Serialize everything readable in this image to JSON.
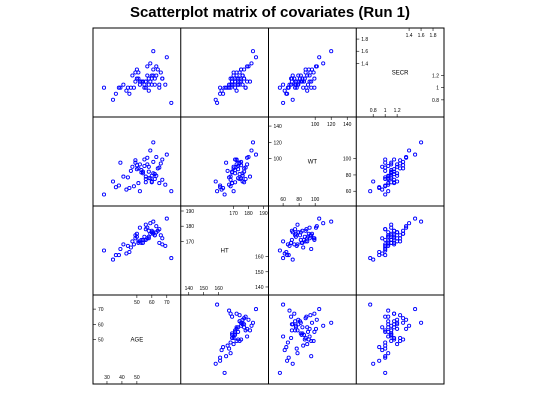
{
  "chart_data": {
    "type": "scatter",
    "title": "Scatterplot matrix of covariates (Run 1)",
    "variables": [
      "AGE",
      "HT",
      "WT",
      "SECR"
    ],
    "layout": "lower-left-to-upper-right diagonal",
    "point_color": "#0000ff",
    "ranges": {
      "AGE": [
        24,
        76
      ],
      "HT": [
        138,
        190
      ],
      "WT": [
        48,
        145
      ],
      "SECR": [
        0.6,
        1.9
      ]
    },
    "ticks": {
      "AGE": {
        "top": [
          50,
          60,
          70
        ],
        "left": [
          70,
          60,
          50
        ],
        "bottom": [
          30,
          40,
          50
        ]
      },
      "HT": {
        "top": [
          170,
          180,
          190
        ],
        "left": [
          190,
          180,
          170
        ],
        "right": [
          160,
          150,
          140
        ],
        "bottom": [
          140,
          150,
          160
        ]
      },
      "WT": {
        "top": [
          100,
          120,
          140
        ],
        "left": [
          140,
          120,
          100
        ],
        "right": [
          100,
          80,
          60
        ],
        "bottom": [
          60,
          80,
          100
        ]
      },
      "SECR": {
        "top": [
          1.4,
          1.6,
          1.8
        ],
        "left": [
          1.8,
          1.6,
          1.4
        ],
        "right": [
          1.2,
          1.0,
          0.8
        ],
        "bottom": [
          0.8,
          1.0,
          1.2
        ]
      }
    },
    "points": {
      "AGE": [
        41,
        49,
        51,
        58,
        61,
        36,
        55,
        64,
        59,
        52,
        46,
        63,
        67,
        57,
        38,
        54,
        60,
        49,
        56,
        65,
        43,
        59,
        62,
        52,
        69,
        47,
        56,
        50,
        61,
        34,
        70,
        58,
        53,
        66,
        60,
        45,
        53,
        55,
        63,
        57,
        48,
        67,
        51,
        62,
        28,
        54,
        60,
        39,
        58,
        65,
        50,
        56,
        73,
        61,
        44
      ],
      "HT": [
        168,
        174,
        169,
        172,
        176,
        161,
        171,
        177,
        175,
        170,
        166,
        180,
        168,
        172,
        161,
        169,
        176,
        172,
        171,
        178,
        162,
        182,
        174,
        179,
        167,
        170,
        178,
        173,
        175,
        158,
        185,
        173,
        169,
        174,
        177,
        163,
        171,
        173,
        176,
        179,
        168,
        172,
        170,
        174,
        164,
        171,
        176,
        165,
        177,
        169,
        175,
        181,
        159,
        183,
        167
      ],
      "WT": [
        78,
        95,
        70,
        90,
        82,
        65,
        99,
        88,
        76,
        60,
        85,
        102,
        74,
        93,
        67,
        84,
        79,
        98,
        71,
        89,
        62,
        110,
        81,
        93,
        68,
        90,
        75,
        87,
        96,
        72,
        105,
        76,
        83,
        94,
        71,
        64,
        86,
        91,
        79,
        101,
        66,
        99,
        88,
        75,
        56,
        82,
        72,
        95,
        84,
        70,
        92,
        78,
        60,
        120,
        77
      ],
      "SECR": [
        1.05,
        1.1,
        1.15,
        0.95,
        1.2,
        0.9,
        1.0,
        1.3,
        1.1,
        1.05,
        1.0,
        1.35,
        1.15,
        1.2,
        1.0,
        1.1,
        1.05,
        1.25,
        1.1,
        1.0,
        0.95,
        1.4,
        1.15,
        1.1,
        1.05,
        1.2,
        1.0,
        1.15,
        1.3,
        0.8,
        1.5,
        1.05,
        1.1,
        1.25,
        1.15,
        0.9,
        1.1,
        1.05,
        1.2,
        1.35,
        1.0,
        1.15,
        1.25,
        1.05,
        1.0,
        1.1,
        1.2,
        1.0,
        1.15,
        1.05,
        1.3,
        1.1,
        0.75,
        1.6,
        1.0
      ]
    }
  }
}
